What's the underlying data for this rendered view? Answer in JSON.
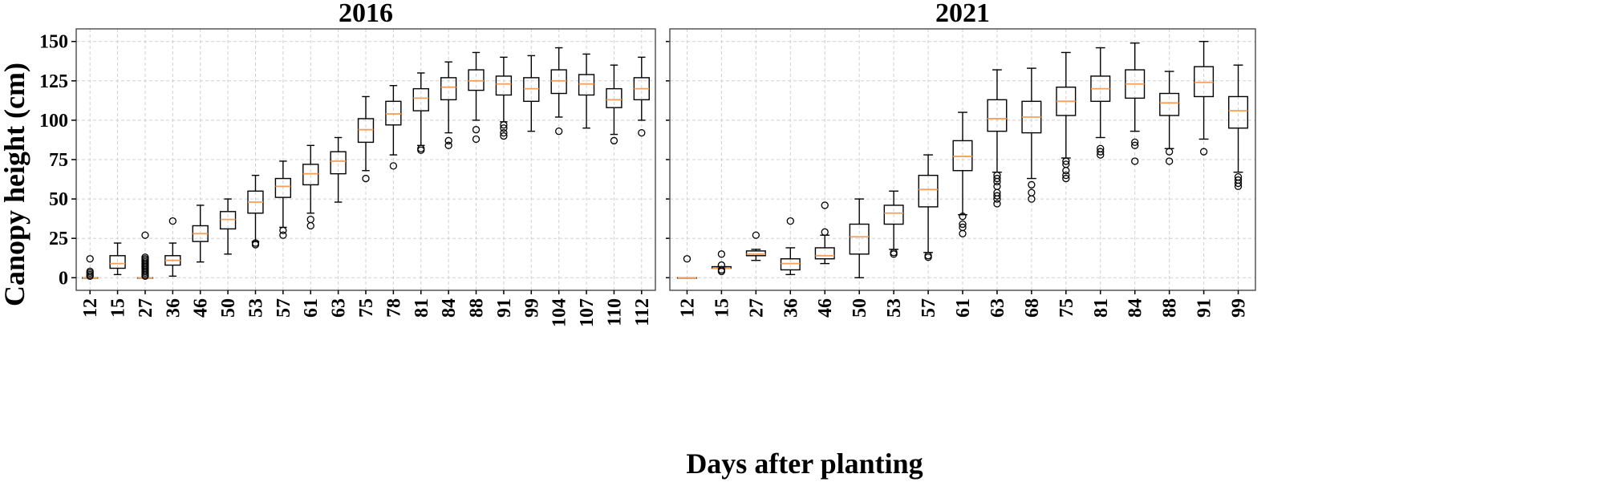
{
  "figure": {
    "ylabel": "Canopy height (cm)",
    "xlabel": "Days after planting",
    "shared_y_axis": true,
    "ylim": [
      -8,
      158
    ],
    "yticks": [
      0,
      25,
      50,
      75,
      100,
      125,
      150
    ],
    "grid": true,
    "colors": {
      "box": "#000000",
      "median": "#f5a05a",
      "grid": "#d0d0d0",
      "frame": "#555555"
    }
  },
  "chart_data": [
    {
      "type": "box",
      "title": "2016",
      "categories": [
        "12",
        "15",
        "27",
        "36",
        "46",
        "50",
        "53",
        "57",
        "61",
        "63",
        "75",
        "78",
        "81",
        "84",
        "88",
        "91",
        "99",
        "104",
        "107",
        "110",
        "112"
      ],
      "boxes": [
        {
          "whislo": 0,
          "q1": 0,
          "med": 0,
          "q3": 0,
          "whishi": 0,
          "fliers": [
            1,
            2,
            3,
            4,
            12
          ]
        },
        {
          "whislo": 2,
          "q1": 6,
          "med": 9,
          "q3": 14,
          "whishi": 22,
          "fliers": []
        },
        {
          "whislo": 0,
          "q1": 0,
          "med": 0,
          "q3": 0,
          "whishi": 0,
          "fliers": [
            1,
            2,
            3,
            4,
            5,
            6,
            7,
            8,
            9,
            10,
            11,
            12,
            13,
            27
          ]
        },
        {
          "whislo": 1,
          "q1": 8,
          "med": 11,
          "q3": 14,
          "whishi": 22,
          "fliers": [
            36
          ]
        },
        {
          "whislo": 10,
          "q1": 23,
          "med": 28,
          "q3": 33,
          "whishi": 46,
          "fliers": []
        },
        {
          "whislo": 15,
          "q1": 31,
          "med": 37,
          "q3": 42,
          "whishi": 50,
          "fliers": []
        },
        {
          "whislo": 23,
          "q1": 41,
          "med": 48,
          "q3": 55,
          "whishi": 65,
          "fliers": [
            21,
            22
          ]
        },
        {
          "whislo": 32,
          "q1": 51,
          "med": 58,
          "q3": 63,
          "whishi": 74,
          "fliers": [
            27,
            30
          ]
        },
        {
          "whislo": 41,
          "q1": 59,
          "med": 66,
          "q3": 72,
          "whishi": 84,
          "fliers": [
            33,
            37
          ]
        },
        {
          "whislo": 48,
          "q1": 66,
          "med": 74,
          "q3": 80,
          "whishi": 89,
          "fliers": []
        },
        {
          "whislo": 68,
          "q1": 86,
          "med": 94,
          "q3": 101,
          "whishi": 115,
          "fliers": [
            63
          ]
        },
        {
          "whislo": 78,
          "q1": 97,
          "med": 104,
          "q3": 112,
          "whishi": 122,
          "fliers": [
            71
          ]
        },
        {
          "whislo": 84,
          "q1": 106,
          "med": 114,
          "q3": 120,
          "whishi": 130,
          "fliers": [
            81,
            82
          ]
        },
        {
          "whislo": 92,
          "q1": 113,
          "med": 121,
          "q3": 127,
          "whishi": 137,
          "fliers": [
            84,
            87
          ]
        },
        {
          "whislo": 100,
          "q1": 119,
          "med": 125,
          "q3": 132,
          "whishi": 143,
          "fliers": [
            88,
            94
          ]
        },
        {
          "whislo": 99,
          "q1": 116,
          "med": 123,
          "q3": 128,
          "whishi": 140,
          "fliers": [
            90,
            92,
            95,
            97
          ]
        },
        {
          "whislo": 93,
          "q1": 112,
          "med": 120,
          "q3": 127,
          "whishi": 141,
          "fliers": []
        },
        {
          "whislo": 102,
          "q1": 117,
          "med": 125,
          "q3": 132,
          "whishi": 146,
          "fliers": [
            93
          ]
        },
        {
          "whislo": 95,
          "q1": 116,
          "med": 123,
          "q3": 129,
          "whishi": 142,
          "fliers": []
        },
        {
          "whislo": 91,
          "q1": 108,
          "med": 113,
          "q3": 120,
          "whishi": 135,
          "fliers": [
            87
          ]
        },
        {
          "whislo": 100,
          "q1": 113,
          "med": 120,
          "q3": 127,
          "whishi": 140,
          "fliers": [
            92
          ]
        }
      ]
    },
    {
      "type": "box",
      "title": "2021",
      "categories": [
        "12",
        "15",
        "27",
        "36",
        "46",
        "50",
        "53",
        "57",
        "61",
        "63",
        "68",
        "75",
        "81",
        "84",
        "88",
        "91",
        "99"
      ],
      "boxes": [
        {
          "whislo": 0,
          "q1": 0,
          "med": 0,
          "q3": 0,
          "whishi": 0,
          "fliers": [
            12
          ]
        },
        {
          "whislo": 6,
          "q1": 6,
          "med": 6,
          "q3": 7,
          "whishi": 7,
          "fliers": [
            4,
            5,
            8,
            15
          ]
        },
        {
          "whislo": 11,
          "q1": 14,
          "med": 15,
          "q3": 17,
          "whishi": 18,
          "fliers": [
            27
          ]
        },
        {
          "whislo": 2,
          "q1": 5,
          "med": 9,
          "q3": 12,
          "whishi": 19,
          "fliers": [
            36
          ]
        },
        {
          "whislo": 9,
          "q1": 12,
          "med": 14,
          "q3": 19,
          "whishi": 27,
          "fliers": [
            29,
            46
          ]
        },
        {
          "whislo": 0,
          "q1": 15,
          "med": 26,
          "q3": 34,
          "whishi": 50,
          "fliers": []
        },
        {
          "whislo": 18,
          "q1": 34,
          "med": 41,
          "q3": 46,
          "whishi": 55,
          "fliers": [
            15,
            16
          ]
        },
        {
          "whislo": 16,
          "q1": 45,
          "med": 56,
          "q3": 65,
          "whishi": 78,
          "fliers": [
            13,
            14
          ]
        },
        {
          "whislo": 40,
          "q1": 68,
          "med": 77,
          "q3": 87,
          "whishi": 105,
          "fliers": [
            28,
            32,
            34,
            39
          ]
        },
        {
          "whislo": 67,
          "q1": 93,
          "med": 101,
          "q3": 113,
          "whishi": 132,
          "fliers": [
            47,
            50,
            52,
            54,
            58,
            61,
            63,
            65
          ]
        },
        {
          "whislo": 63,
          "q1": 92,
          "med": 102,
          "q3": 112,
          "whishi": 133,
          "fliers": [
            50,
            54,
            59
          ]
        },
        {
          "whislo": 76,
          "q1": 103,
          "med": 112,
          "q3": 121,
          "whishi": 143,
          "fliers": [
            63,
            65,
            68,
            72,
            74
          ]
        },
        {
          "whislo": 89,
          "q1": 112,
          "med": 120,
          "q3": 128,
          "whishi": 146,
          "fliers": [
            78,
            80,
            82
          ]
        },
        {
          "whislo": 93,
          "q1": 114,
          "med": 123,
          "q3": 132,
          "whishi": 149,
          "fliers": [
            74,
            84,
            86
          ]
        },
        {
          "whislo": 82,
          "q1": 103,
          "med": 111,
          "q3": 117,
          "whishi": 131,
          "fliers": [
            74,
            80
          ]
        },
        {
          "whislo": 88,
          "q1": 115,
          "med": 124,
          "q3": 134,
          "whishi": 150,
          "fliers": [
            80
          ]
        },
        {
          "whislo": 67,
          "q1": 95,
          "med": 106,
          "q3": 115,
          "whishi": 135,
          "fliers": [
            58,
            60,
            62,
            64
          ]
        }
      ]
    }
  ]
}
